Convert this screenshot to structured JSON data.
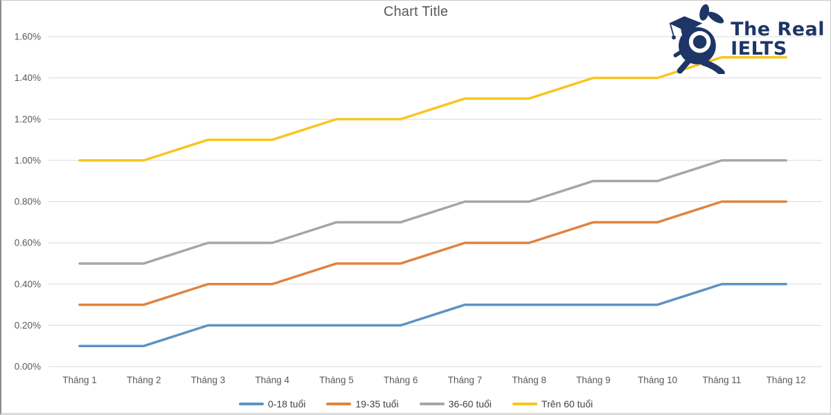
{
  "logo": {
    "text_line1": "The Real",
    "text_line2": "IELTS",
    "color": "#1e3567"
  },
  "chart_data": {
    "type": "line",
    "title": "Chart Title",
    "categories": [
      "Tháng 1",
      "Tháng 2",
      "Tháng 3",
      "Tháng 4",
      "Tháng 5",
      "Tháng 6",
      "Tháng 7",
      "Tháng 8",
      "Tháng 9",
      "Tháng 10",
      "Tháng 11",
      "Tháng 12"
    ],
    "unit": "%",
    "series": [
      {
        "name": "0-18 tuổi",
        "color": "#5b93c4",
        "values": [
          0.1,
          0.1,
          0.2,
          0.2,
          0.2,
          0.2,
          0.3,
          0.3,
          0.3,
          0.3,
          0.4,
          0.4
        ]
      },
      {
        "name": "19-35 tuổi",
        "color": "#e0823f",
        "values": [
          0.3,
          0.3,
          0.4,
          0.4,
          0.5,
          0.5,
          0.6,
          0.6,
          0.7,
          0.7,
          0.8,
          0.8
        ]
      },
      {
        "name": "36-60 tuổi",
        "color": "#a6a6a6",
        "values": [
          0.5,
          0.5,
          0.6,
          0.6,
          0.7,
          0.7,
          0.8,
          0.8,
          0.9,
          0.9,
          1.0,
          1.0
        ]
      },
      {
        "name": "Trên 60 tuổi",
        "color": "#f8c51d",
        "values": [
          1.0,
          1.0,
          1.1,
          1.1,
          1.2,
          1.2,
          1.3,
          1.3,
          1.4,
          1.4,
          1.5,
          1.5
        ]
      }
    ],
    "ylim": [
      0,
      1.6
    ],
    "yticks": [
      {
        "value": 0.0,
        "label": "0.00%"
      },
      {
        "value": 0.2,
        "label": "0.20%"
      },
      {
        "value": 0.4,
        "label": "0.40%"
      },
      {
        "value": 0.6,
        "label": "0.60%"
      },
      {
        "value": 0.8,
        "label": "0.80%"
      },
      {
        "value": 1.0,
        "label": "1.00%"
      },
      {
        "value": 1.2,
        "label": "1.20%"
      },
      {
        "value": 1.4,
        "label": "1.40%"
      },
      {
        "value": 1.6,
        "label": "1.60%"
      }
    ],
    "grid": true,
    "gridline_color": "#d9d9d9",
    "axis_label_color": "#595959",
    "legend_position": "bottom"
  }
}
